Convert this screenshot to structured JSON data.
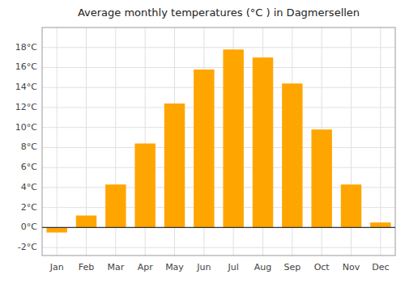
{
  "chart_data": {
    "type": "bar",
    "title": "Average monthly temperatures (°C ) in Dagmersellen",
    "categories": [
      "Jan",
      "Feb",
      "Mar",
      "Apr",
      "May",
      "Jun",
      "Jul",
      "Aug",
      "Sep",
      "Oct",
      "Nov",
      "Dec"
    ],
    "values": [
      -0.5,
      1.2,
      4.3,
      8.4,
      12.4,
      15.8,
      17.8,
      17.0,
      14.4,
      9.8,
      4.3,
      0.5
    ],
    "color": "#FFA500",
    "ylim": [
      -2.8,
      20.0
    ],
    "yticks": [
      {
        "value": -2,
        "label": "-2°C"
      },
      {
        "value": 0,
        "label": "0°C"
      },
      {
        "value": 2,
        "label": "2°C"
      },
      {
        "value": 4,
        "label": "4°C"
      },
      {
        "value": 6,
        "label": "6°C"
      },
      {
        "value": 8,
        "label": "8°C"
      },
      {
        "value": 10,
        "label": "10°C"
      },
      {
        "value": 12,
        "label": "12°C"
      },
      {
        "value": 14,
        "label": "14°C"
      },
      {
        "value": 16,
        "label": "16°C"
      },
      {
        "value": 18,
        "label": "18°C"
      }
    ],
    "grid": true
  }
}
